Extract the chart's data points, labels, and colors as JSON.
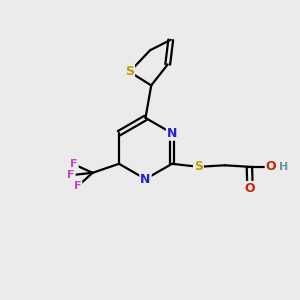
{
  "background_color": "#ebebeb",
  "bond_color": "#000000",
  "atom_colors": {
    "S_thio": "#b8a000",
    "S_link": "#b8a000",
    "N": "#2222cc",
    "F": "#cc44cc",
    "O": "#cc2200",
    "H": "#669999",
    "C": "#000000"
  },
  "figsize": [
    3.0,
    3.0
  ],
  "dpi": 100
}
